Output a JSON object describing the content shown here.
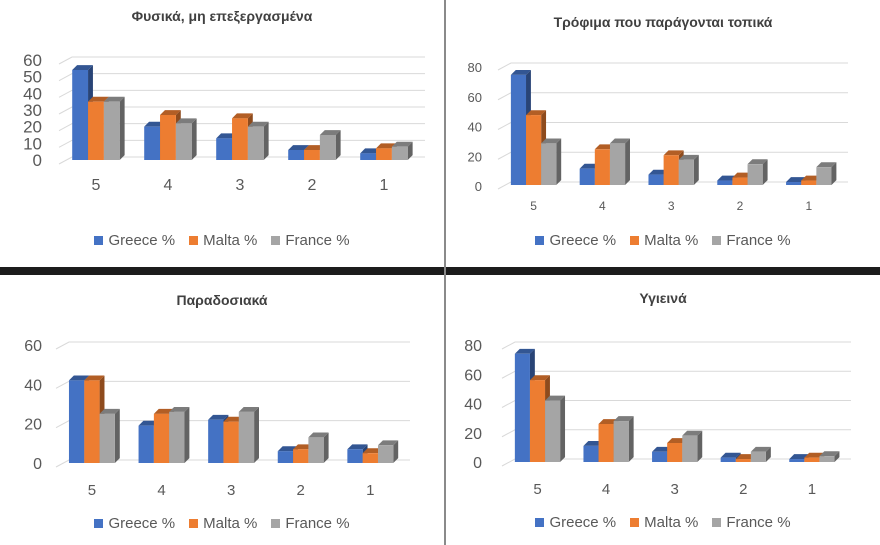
{
  "colors": {
    "Greece %": "#4472c4",
    "Malta %": "#ed7d31",
    "France %": "#a5a5a5"
  },
  "chart_data": [
    {
      "type": "bar",
      "title": "Φυσικά, μη επεξεργασμένα",
      "categories": [
        "5",
        "4",
        "3",
        "2",
        "1"
      ],
      "ylim": [
        0,
        60
      ],
      "yticks": [
        0,
        10,
        20,
        30,
        40,
        50,
        60
      ],
      "grid": true,
      "legend": "bottom",
      "style": "3d-clustered-column",
      "series": [
        {
          "name": "Greece %",
          "values": [
            54,
            20,
            13,
            6,
            4
          ]
        },
        {
          "name": "Malta %",
          "values": [
            35,
            27,
            25,
            6,
            7
          ]
        },
        {
          "name": "France %",
          "values": [
            35,
            22,
            20,
            15,
            8
          ]
        }
      ]
    },
    {
      "type": "bar",
      "title": "Τρόφιμα που παράγονται τοπικά",
      "categories": [
        "5",
        "4",
        "3",
        "2",
        "1"
      ],
      "ylim": [
        0,
        80
      ],
      "yticks": [
        0,
        20,
        40,
        60,
        80
      ],
      "grid": true,
      "legend": "bottom",
      "style": "3d-clustered-column",
      "series": [
        {
          "name": "Greece %",
          "values": [
            74,
            11,
            7,
            3,
            2
          ]
        },
        {
          "name": "Malta %",
          "values": [
            47,
            24,
            20,
            5,
            3
          ]
        },
        {
          "name": "France %",
          "values": [
            28,
            28,
            17,
            14,
            12
          ]
        }
      ]
    },
    {
      "type": "bar",
      "title": "Παραδοσιακά",
      "categories": [
        "5",
        "4",
        "3",
        "2",
        "1"
      ],
      "ylim": [
        0,
        60
      ],
      "yticks": [
        0,
        20,
        40,
        60
      ],
      "grid": true,
      "legend": "bottom",
      "style": "3d-clustered-column",
      "series": [
        {
          "name": "Greece %",
          "values": [
            42,
            19,
            22,
            6,
            7
          ]
        },
        {
          "name": "Malta %",
          "values": [
            42,
            25,
            21,
            7,
            5
          ]
        },
        {
          "name": "France %",
          "values": [
            25,
            26,
            26,
            13,
            9
          ]
        }
      ]
    },
    {
      "type": "bar",
      "title": "Υγιεινά",
      "categories": [
        "5",
        "4",
        "3",
        "2",
        "1"
      ],
      "ylim": [
        0,
        80
      ],
      "yticks": [
        0,
        20,
        40,
        60,
        80
      ],
      "grid": true,
      "legend": "bottom",
      "style": "3d-clustered-column",
      "series": [
        {
          "name": "Greece %",
          "values": [
            74,
            11,
            7,
            3,
            2
          ]
        },
        {
          "name": "Malta %",
          "values": [
            56,
            26,
            13,
            2,
            3
          ]
        },
        {
          "name": "France %",
          "values": [
            42,
            28,
            18,
            7,
            4
          ]
        }
      ]
    }
  ]
}
